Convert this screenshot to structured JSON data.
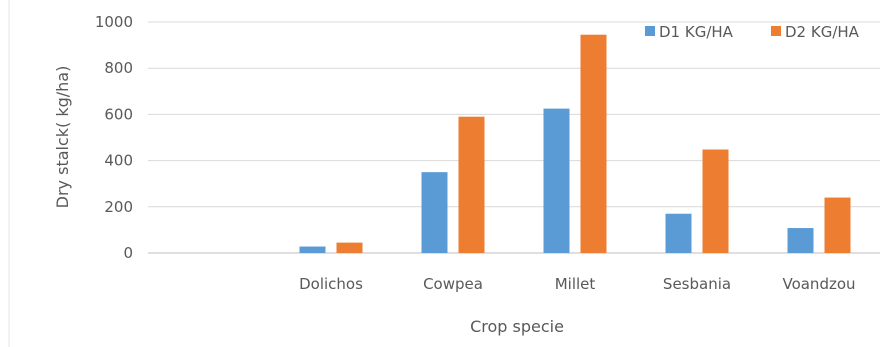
{
  "chart_data": {
    "type": "bar",
    "categories": [
      "Dolichos",
      "Cowpea",
      "Millet",
      "Sesbania",
      "Voandzou"
    ],
    "series": [
      {
        "name": "D1 KG/HA",
        "color": "#5b9bd5",
        "values": [
          28,
          350,
          625,
          170,
          108
        ]
      },
      {
        "name": "D2 KG/HA",
        "color": "#ed7d31",
        "values": [
          45,
          590,
          945,
          448,
          240
        ]
      }
    ],
    "xlabel": "Crop specie",
    "ylabel": "Dry stalck( kg/ha)",
    "ylim": [
      0,
      1000
    ],
    "yticks": [
      0,
      200,
      400,
      600,
      800,
      1000
    ],
    "grid": true,
    "legend": "top-right"
  }
}
